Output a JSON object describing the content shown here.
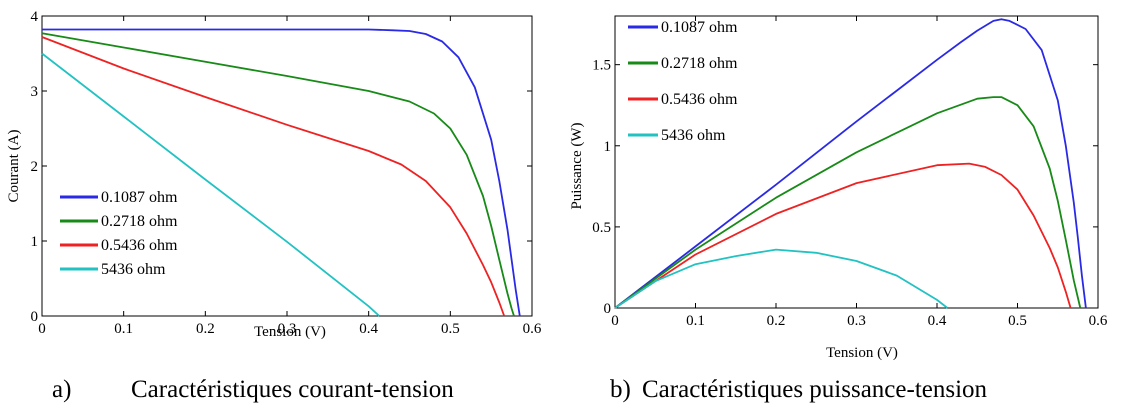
{
  "colors": {
    "blue": "#2a2ae6",
    "green": "#178a17",
    "red": "#ee2222",
    "cyan": "#22c2c2"
  },
  "chart_data": [
    {
      "type": "line",
      "title": "",
      "xlabel": "Tension (V)",
      "ylabel": "Courant (A)",
      "xlim": [
        0,
        0.6
      ],
      "ylim": [
        0,
        4
      ],
      "xticks": [
        "0",
        "0.1",
        "0.2",
        "0.3",
        "0.4",
        "0.5",
        "0.6"
      ],
      "yticks": [
        "0",
        "1",
        "2",
        "3",
        "4"
      ],
      "legend_position": "bottom-left",
      "grid": false,
      "caption_letter": "a)",
      "caption": "Caractéristiques courant-tension",
      "series": [
        {
          "name": "0.1087 ohm",
          "color": "blue",
          "x": [
            0,
            0.1,
            0.2,
            0.3,
            0.35,
            0.4,
            0.43,
            0.45,
            0.47,
            0.49,
            0.51,
            0.53,
            0.55,
            0.56,
            0.57,
            0.575,
            0.58,
            0.585
          ],
          "y": [
            3.82,
            3.82,
            3.82,
            3.82,
            3.82,
            3.82,
            3.81,
            3.8,
            3.76,
            3.66,
            3.45,
            3.05,
            2.35,
            1.8,
            1.15,
            0.75,
            0.35,
            0
          ]
        },
        {
          "name": "0.2718 ohm",
          "color": "green",
          "x": [
            0,
            0.1,
            0.2,
            0.3,
            0.4,
            0.45,
            0.48,
            0.5,
            0.52,
            0.54,
            0.55,
            0.56,
            0.57,
            0.575,
            0.578
          ],
          "y": [
            3.77,
            3.58,
            3.39,
            3.2,
            3.0,
            2.86,
            2.7,
            2.5,
            2.15,
            1.6,
            1.2,
            0.75,
            0.3,
            0.1,
            0
          ]
        },
        {
          "name": "0.5436 ohm",
          "color": "red",
          "x": [
            0,
            0.1,
            0.2,
            0.3,
            0.4,
            0.44,
            0.47,
            0.5,
            0.52,
            0.54,
            0.55,
            0.56,
            0.566
          ],
          "y": [
            3.72,
            3.3,
            2.92,
            2.55,
            2.2,
            2.02,
            1.8,
            1.45,
            1.1,
            0.68,
            0.45,
            0.18,
            0
          ]
        },
        {
          "name": "5436 ohm",
          "color": "cyan",
          "x": [
            0,
            0.1,
            0.2,
            0.3,
            0.4,
            0.413
          ],
          "y": [
            3.5,
            2.66,
            1.82,
            0.99,
            0.13,
            0
          ]
        }
      ]
    },
    {
      "type": "line",
      "title": "",
      "xlabel": "Tension (V)",
      "ylabel": "Puissance (W)",
      "xlim": [
        0,
        0.6
      ],
      "ylim": [
        0,
        1.8
      ],
      "xticks": [
        "0",
        "0.1",
        "0.2",
        "0.3",
        "0.4",
        "0.5",
        "0.6"
      ],
      "yticks": [
        "0",
        "0.5",
        "1",
        "1.5"
      ],
      "ytick_values": [
        0,
        0.5,
        1,
        1.5
      ],
      "legend_position": "top-left",
      "grid": false,
      "caption_letter": "b)",
      "caption": "Caractéristiques puissance-tension",
      "series": [
        {
          "name": "0.1087 ohm",
          "color": "blue",
          "x": [
            0,
            0.1,
            0.2,
            0.3,
            0.35,
            0.4,
            0.43,
            0.45,
            0.47,
            0.48,
            0.49,
            0.51,
            0.53,
            0.55,
            0.56,
            0.57,
            0.575,
            0.58,
            0.585
          ],
          "y": [
            0,
            0.38,
            0.76,
            1.15,
            1.34,
            1.53,
            1.64,
            1.71,
            1.77,
            1.78,
            1.77,
            1.72,
            1.59,
            1.28,
            1.0,
            0.65,
            0.43,
            0.2,
            0
          ]
        },
        {
          "name": "0.2718 ohm",
          "color": "green",
          "x": [
            0,
            0.1,
            0.2,
            0.3,
            0.4,
            0.45,
            0.47,
            0.48,
            0.5,
            0.52,
            0.54,
            0.55,
            0.56,
            0.57,
            0.578
          ],
          "y": [
            0,
            0.36,
            0.68,
            0.96,
            1.2,
            1.29,
            1.3,
            1.3,
            1.25,
            1.12,
            0.86,
            0.66,
            0.42,
            0.17,
            0
          ]
        },
        {
          "name": "0.5436 ohm",
          "color": "red",
          "x": [
            0,
            0.1,
            0.2,
            0.3,
            0.4,
            0.44,
            0.46,
            0.48,
            0.5,
            0.52,
            0.54,
            0.55,
            0.56,
            0.566
          ],
          "y": [
            0,
            0.33,
            0.58,
            0.77,
            0.88,
            0.89,
            0.87,
            0.82,
            0.73,
            0.57,
            0.37,
            0.25,
            0.1,
            0
          ]
        },
        {
          "name": "5436 ohm",
          "color": "cyan",
          "x": [
            0,
            0.05,
            0.1,
            0.15,
            0.2,
            0.25,
            0.3,
            0.35,
            0.4,
            0.413
          ],
          "y": [
            0,
            0.165,
            0.27,
            0.32,
            0.36,
            0.34,
            0.29,
            0.2,
            0.05,
            0
          ]
        }
      ]
    }
  ]
}
